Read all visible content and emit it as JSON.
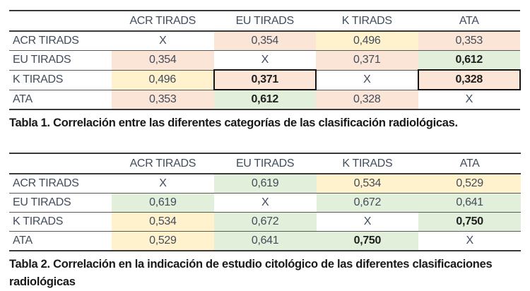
{
  "palette": {
    "peach": "#FBE5D6",
    "yellow": "#FFF2CC",
    "green": "#E2EFDA",
    "white": "#FFFFFF"
  },
  "colors": {
    "regular_text": "#414C5C",
    "bold_text": "#1F1F1F",
    "strong_border": "#3A3A3A",
    "row_border": "#595959",
    "box_border": "#161616"
  },
  "tables": {
    "table1": {
      "headers": [
        "",
        "ACR TIRADS",
        "EU TIRADS",
        "K TIRADS",
        "ATA"
      ],
      "rows": [
        {
          "label": "ACR TIRADS",
          "cells": [
            {
              "v": "X",
              "bg": "white"
            },
            {
              "v": "0,354",
              "bg": "peach"
            },
            {
              "v": "0,496",
              "bg": "yellow"
            },
            {
              "v": "0,353",
              "bg": "peach"
            }
          ]
        },
        {
          "label": "EU TIRADS",
          "cells": [
            {
              "v": "0,354",
              "bg": "peach"
            },
            {
              "v": "X",
              "bg": "white"
            },
            {
              "v": "0,371",
              "bg": "peach"
            },
            {
              "v": "0,612",
              "bg": "green",
              "bold": true
            }
          ]
        },
        {
          "label": "K TIRADS",
          "cells": [
            {
              "v": "0,496",
              "bg": "yellow"
            },
            {
              "v": "0,371",
              "bg": "peach",
              "bold": true,
              "boxed": true
            },
            {
              "v": "X",
              "bg": "white"
            },
            {
              "v": "0,328",
              "bg": "peach",
              "bold": true,
              "boxed": true
            }
          ]
        },
        {
          "label": "ATA",
          "cells": [
            {
              "v": "0,353",
              "bg": "peach"
            },
            {
              "v": "0,612",
              "bg": "green",
              "bold": true
            },
            {
              "v": "0,328",
              "bg": "peach"
            },
            {
              "v": "X",
              "bg": "white"
            }
          ]
        }
      ],
      "caption": "Tabla 1. Correlación entre las diferentes categorías de las clasificación radiológicas."
    },
    "table2": {
      "headers": [
        "",
        "ACR TIRADS",
        "EU TIRADS",
        "K TIRADS",
        "ATA"
      ],
      "rows": [
        {
          "label": "ACR TIRADS",
          "cells": [
            {
              "v": "X",
              "bg": "white"
            },
            {
              "v": "0,619",
              "bg": "green"
            },
            {
              "v": "0,534",
              "bg": "yellow"
            },
            {
              "v": "0,529",
              "bg": "yellow"
            }
          ]
        },
        {
          "label": "EU TIRADS",
          "cells": [
            {
              "v": "0,619",
              "bg": "green"
            },
            {
              "v": "X",
              "bg": "white"
            },
            {
              "v": "0,672",
              "bg": "green"
            },
            {
              "v": "0,641",
              "bg": "green"
            }
          ]
        },
        {
          "label": "K TIRADS",
          "cells": [
            {
              "v": "0,534",
              "bg": "yellow"
            },
            {
              "v": "0,672",
              "bg": "green"
            },
            {
              "v": "X",
              "bg": "white"
            },
            {
              "v": "0,750",
              "bg": "green",
              "bold": true
            }
          ]
        },
        {
          "label": "ATA",
          "cells": [
            {
              "v": "0,529",
              "bg": "yellow"
            },
            {
              "v": "0,641",
              "bg": "green"
            },
            {
              "v": "0,750",
              "bg": "green",
              "bold": true
            },
            {
              "v": "X",
              "bg": "white"
            }
          ]
        }
      ],
      "caption": "Tabla 2. Correlación en la indicación de estudio citológico de las diferentes clasificaciones radiológicas"
    }
  }
}
